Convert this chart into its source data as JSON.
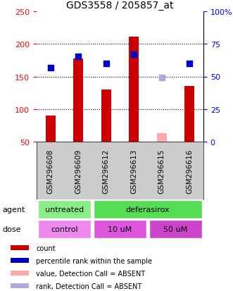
{
  "title": "GDS3558 / 205857_at",
  "samples": [
    "GSM296608",
    "GSM296609",
    "GSM296612",
    "GSM296613",
    "GSM296615",
    "GSM296616"
  ],
  "bar_values": [
    90,
    178,
    130,
    211,
    null,
    135
  ],
  "bar_absent_values": [
    null,
    null,
    null,
    null,
    63,
    null
  ],
  "bar_color": "#cc0000",
  "bar_absent_color": "#ffaaaa",
  "dot_values": [
    164,
    181,
    170,
    184,
    null,
    170
  ],
  "dot_absent_values": [
    null,
    null,
    null,
    null,
    148,
    null
  ],
  "dot_color": "#0000cc",
  "dot_absent_color": "#aaaadd",
  "ylim_left": [
    50,
    250
  ],
  "ylim_right": [
    0,
    100
  ],
  "yticks_left": [
    50,
    100,
    150,
    200,
    250
  ],
  "yticks_right": [
    0,
    25,
    50,
    75,
    100
  ],
  "yticklabels_right": [
    "0",
    "25",
    "50",
    "75",
    "100%"
  ],
  "grid_values": [
    100,
    150,
    200
  ],
  "agent_labels": [
    [
      "untreated",
      0,
      2
    ],
    [
      "deferasirox",
      2,
      6
    ]
  ],
  "dose_labels": [
    [
      "control",
      0,
      2
    ],
    [
      "10 uM",
      2,
      4
    ],
    [
      "50 uM",
      4,
      6
    ]
  ],
  "agent_colors": [
    "#88ee88",
    "#55dd55"
  ],
  "dose_colors": [
    "#ee88ee",
    "#dd55dd",
    "#cc44cc"
  ],
  "sample_bg_color": "#cccccc",
  "legend_items": [
    {
      "color": "#cc0000",
      "label": "count"
    },
    {
      "color": "#0000cc",
      "label": "percentile rank within the sample"
    },
    {
      "color": "#ffaaaa",
      "label": "value, Detection Call = ABSENT"
    },
    {
      "color": "#aaaadd",
      "label": "rank, Detection Call = ABSENT"
    }
  ],
  "bar_width": 0.35,
  "dot_size": 40
}
